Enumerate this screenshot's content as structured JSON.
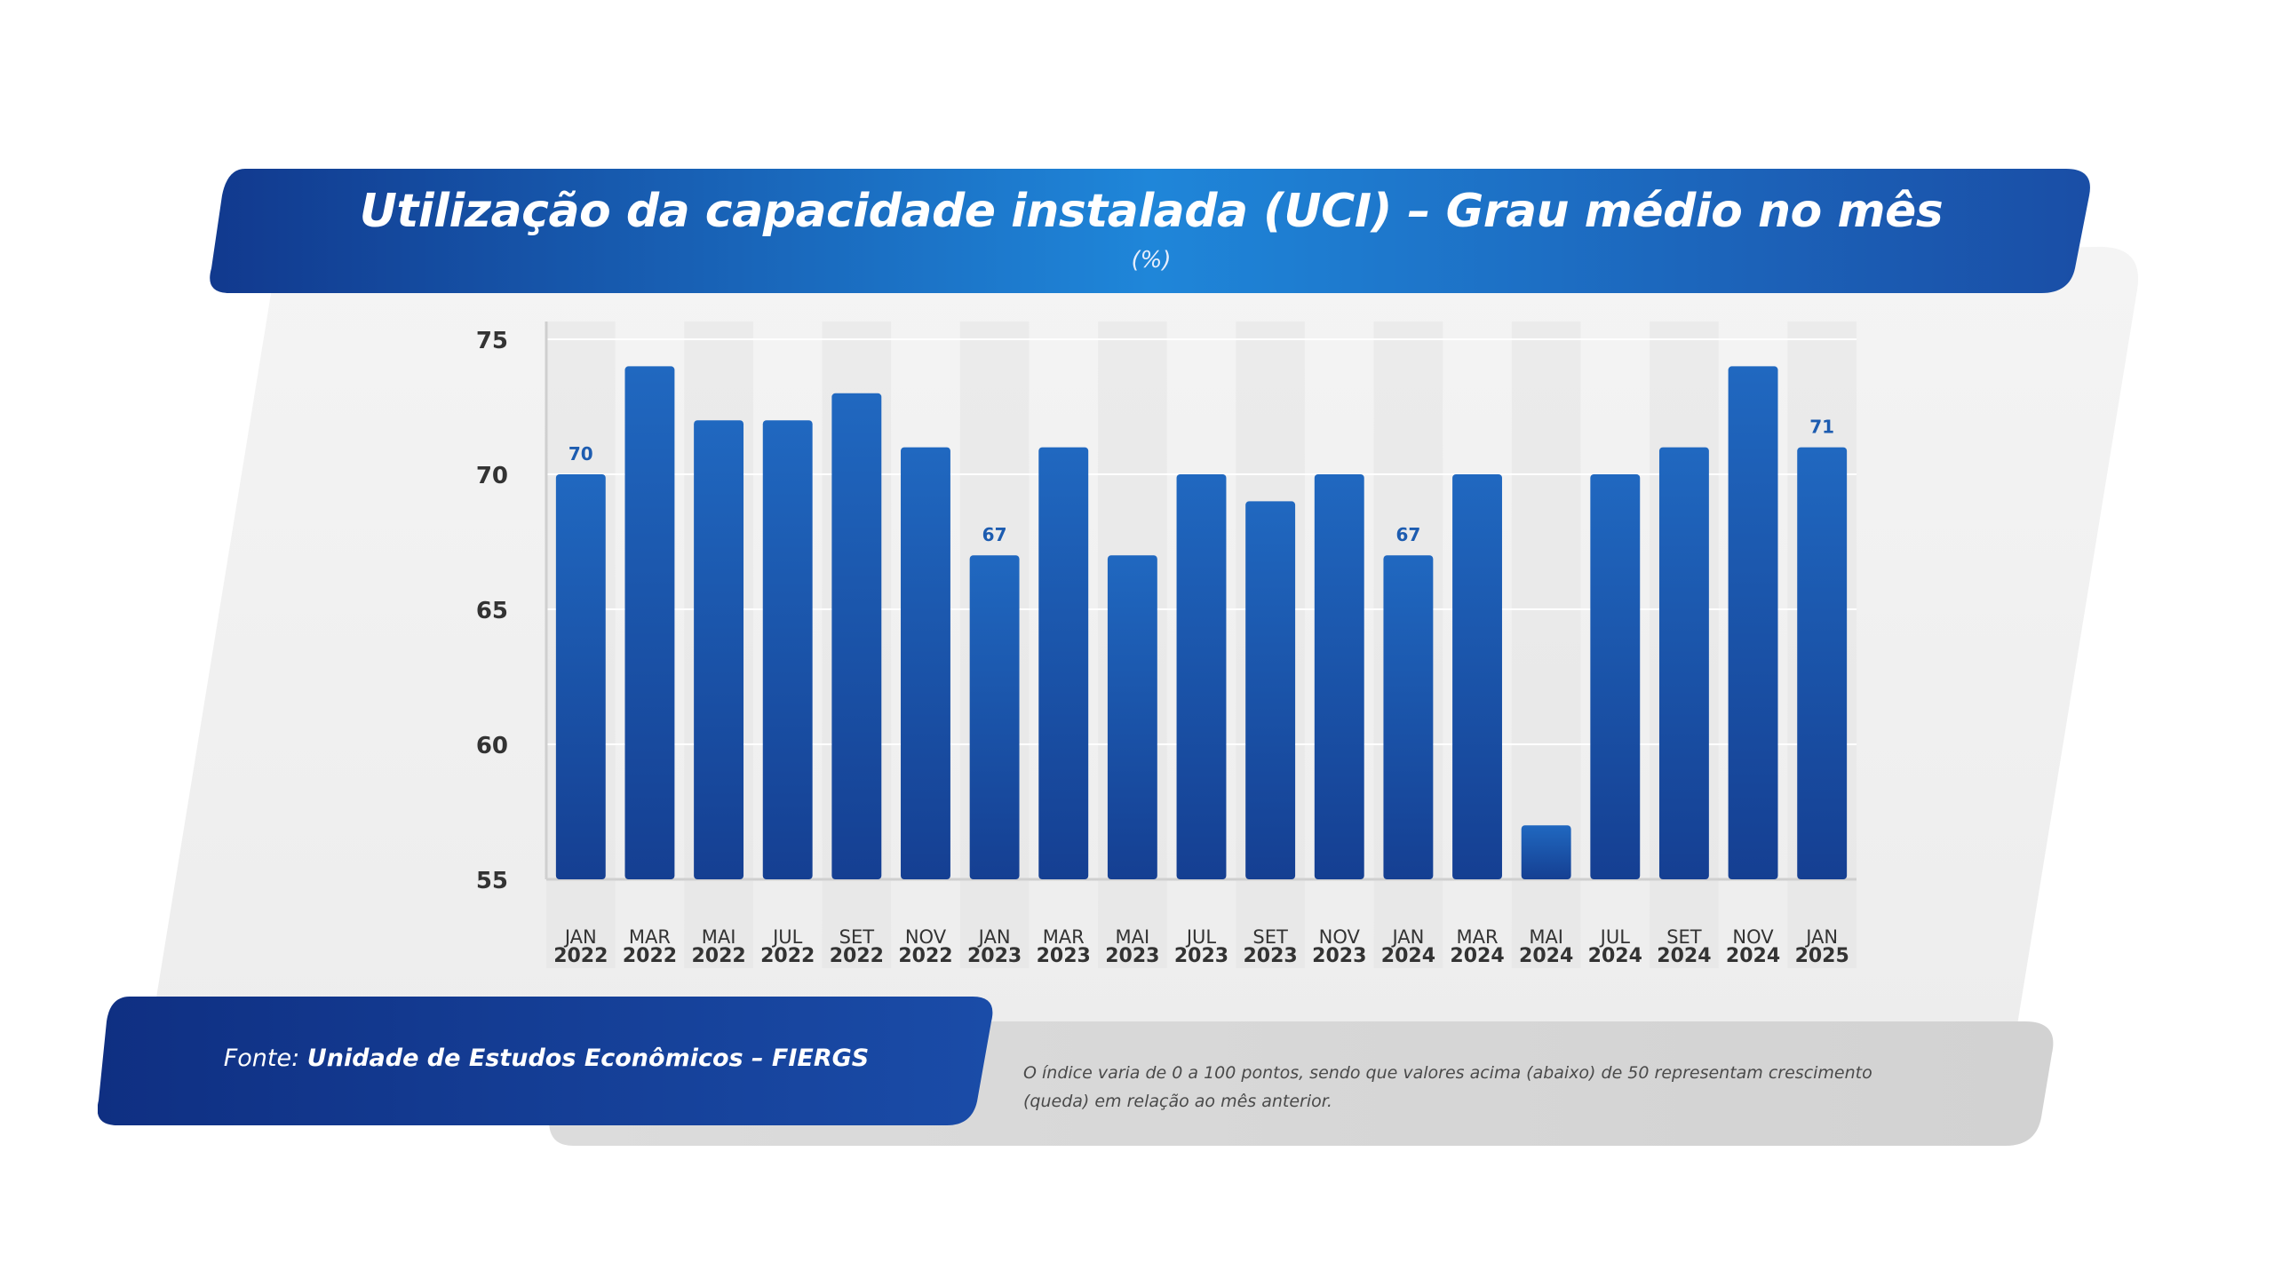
{
  "header": {
    "title": "Utilização da capacidade instalada (UCI) – Grau médio no mês",
    "subtitle": "(%)"
  },
  "footer": {
    "source_prefix": "Fonte: ",
    "source_name": "Unidade de Estudos Econômicos – FIERGS",
    "note": "O índice varia de 0 a 100 pontos, sendo que valores acima (abaixo) de 50 representam crescimento (queda) em relação ao mês anterior."
  },
  "colors": {
    "banner_dark": "#11388c",
    "banner_light": "#1f82d6",
    "bar_top": "#2068c0",
    "bar_bottom": "#153f92",
    "value_label": "#1d5cb0",
    "axis_text": "#333333",
    "panel_bg": "#efefef",
    "note_panel_bg": "#d6d6d6"
  },
  "chart_data": {
    "type": "bar",
    "categories": [
      [
        "JAN",
        "2022"
      ],
      [
        "MAR",
        "2022"
      ],
      [
        "MAI",
        "2022"
      ],
      [
        "JUL",
        "2022"
      ],
      [
        "SET",
        "2022"
      ],
      [
        "NOV",
        "2022"
      ],
      [
        "JAN",
        "2023"
      ],
      [
        "MAR",
        "2023"
      ],
      [
        "MAI",
        "2023"
      ],
      [
        "JUL",
        "2023"
      ],
      [
        "SET",
        "2023"
      ],
      [
        "NOV",
        "2023"
      ],
      [
        "JAN",
        "2024"
      ],
      [
        "MAR",
        "2024"
      ],
      [
        "MAI",
        "2024"
      ],
      [
        "JUL",
        "2024"
      ],
      [
        "SET",
        "2024"
      ],
      [
        "NOV",
        "2024"
      ],
      [
        "JAN",
        "2025"
      ]
    ],
    "values": [
      70,
      74,
      72,
      72,
      73,
      71,
      67,
      71,
      67,
      70,
      69,
      70,
      67,
      70,
      57,
      70,
      71,
      74,
      71
    ],
    "data_labels": [
      {
        "index": 0,
        "text": "70"
      },
      {
        "index": 6,
        "text": "67"
      },
      {
        "index": 12,
        "text": "67"
      },
      {
        "index": 18,
        "text": "71"
      }
    ],
    "ylim": [
      55,
      75
    ],
    "yticks": [
      "55",
      "60",
      "65",
      "70",
      "75"
    ],
    "grid": true,
    "legend": "none"
  }
}
